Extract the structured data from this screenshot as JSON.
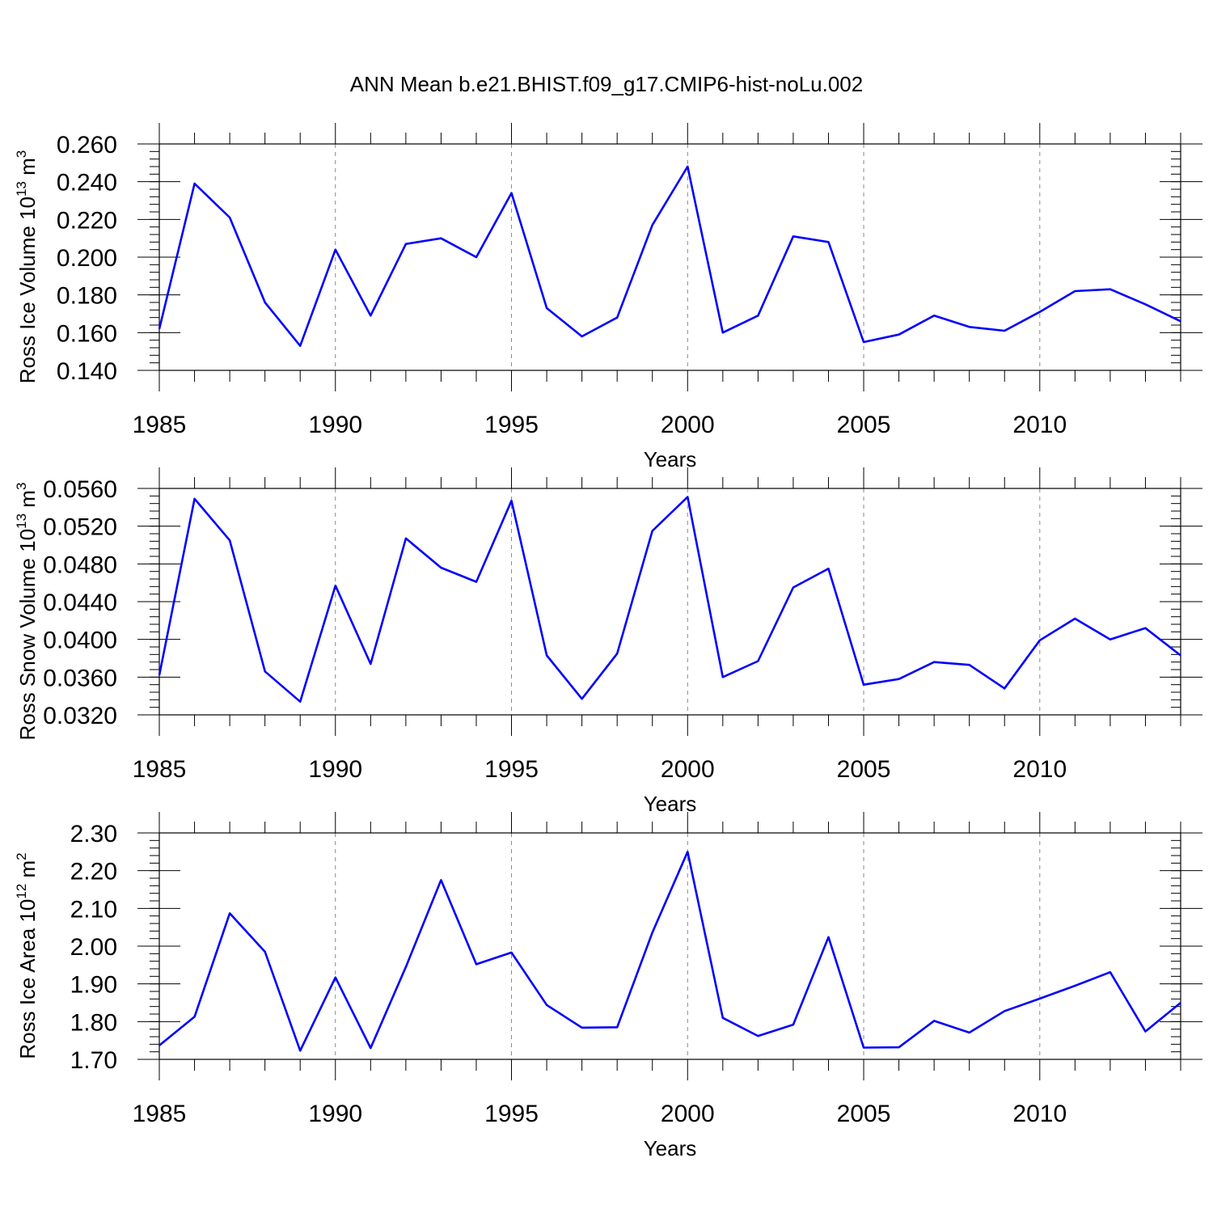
{
  "figure": {
    "title": "ANN Mean b.e21.BHIST.f09_g17.CMIP6-hist-noLu.002"
  },
  "colors": {
    "line": "#0000ff",
    "axis": "#000000",
    "grid": "#888888"
  },
  "chart_data": [
    {
      "type": "line",
      "title": "ANN Mean b.e21.BHIST.f09_g17.CMIP6-hist-noLu.002",
      "ylabel": {
        "main": "Ross Ice Volume 10",
        "exp": "13",
        "unit": " m",
        "unit_exp": "3"
      },
      "xlabel": "Years",
      "xlim": [
        1985,
        2014
      ],
      "ylim": [
        0.14,
        0.26
      ],
      "yticks": [
        0.14,
        0.16,
        0.18,
        0.2,
        0.22,
        0.24,
        0.26
      ],
      "ytick_labels": [
        "0.140",
        "0.160",
        "0.180",
        "0.200",
        "0.220",
        "0.240",
        "0.260"
      ],
      "yminor_step": 0.004,
      "xticks": [
        1985,
        1990,
        1995,
        2000,
        2005,
        2010
      ],
      "xtick_labels": [
        "1985",
        "1990",
        "1995",
        "2000",
        "2005",
        "2010"
      ],
      "grid_x": [
        1990,
        1995,
        2000,
        2005,
        2010
      ],
      "x": [
        1985,
        1986,
        1987,
        1988,
        1989,
        1990,
        1991,
        1992,
        1993,
        1994,
        1995,
        1996,
        1997,
        1998,
        1999,
        2000,
        2001,
        2002,
        2003,
        2004,
        2005,
        2006,
        2007,
        2008,
        2009,
        2010,
        2011,
        2012,
        2013,
        2014
      ],
      "series": [
        {
          "name": "Ross Ice Volume",
          "values": [
            0.162,
            0.239,
            0.221,
            0.176,
            0.153,
            0.204,
            0.169,
            0.207,
            0.21,
            0.2,
            0.234,
            0.173,
            0.158,
            0.168,
            0.217,
            0.248,
            0.16,
            0.169,
            0.211,
            0.208,
            0.155,
            0.159,
            0.169,
            0.163,
            0.161,
            0.171,
            0.182,
            0.183,
            0.175,
            0.166
          ]
        }
      ]
    },
    {
      "type": "line",
      "ylabel": {
        "main": "Ross Snow Volume 10",
        "exp": "13",
        "unit": " m",
        "unit_exp": "3"
      },
      "xlabel": "Years",
      "xlim": [
        1985,
        2014
      ],
      "ylim": [
        0.032,
        0.056
      ],
      "yticks": [
        0.032,
        0.036,
        0.04,
        0.044,
        0.048,
        0.052,
        0.056
      ],
      "ytick_labels": [
        "0.0320",
        "0.0360",
        "0.0400",
        "0.0440",
        "0.0480",
        "0.0520",
        "0.0560"
      ],
      "yminor_step": 0.0008,
      "xticks": [
        1985,
        1990,
        1995,
        2000,
        2005,
        2010
      ],
      "xtick_labels": [
        "1985",
        "1990",
        "1995",
        "2000",
        "2005",
        "2010"
      ],
      "grid_x": [
        1990,
        1995,
        2000,
        2005,
        2010
      ],
      "x": [
        1985,
        1986,
        1987,
        1988,
        1989,
        1990,
        1991,
        1992,
        1993,
        1994,
        1995,
        1996,
        1997,
        1998,
        1999,
        2000,
        2001,
        2002,
        2003,
        2004,
        2005,
        2006,
        2007,
        2008,
        2009,
        2010,
        2011,
        2012,
        2013,
        2014
      ],
      "series": [
        {
          "name": "Ross Snow Volume",
          "values": [
            0.0362,
            0.0549,
            0.0505,
            0.0366,
            0.0334,
            0.0457,
            0.0374,
            0.0507,
            0.0476,
            0.0461,
            0.0547,
            0.0383,
            0.0337,
            0.0385,
            0.0515,
            0.0551,
            0.036,
            0.0377,
            0.0455,
            0.0475,
            0.0352,
            0.0358,
            0.0376,
            0.0373,
            0.0348,
            0.0399,
            0.0422,
            0.04,
            0.0412,
            0.0383
          ]
        }
      ]
    },
    {
      "type": "line",
      "ylabel": {
        "main": "Ross Ice Area 10",
        "exp": "12",
        "unit": " m",
        "unit_exp": "2"
      },
      "xlabel": "Years",
      "xlim": [
        1985,
        2014
      ],
      "ylim": [
        1.7,
        2.3
      ],
      "yticks": [
        1.7,
        1.8,
        1.9,
        2.0,
        2.1,
        2.2,
        2.3
      ],
      "ytick_labels": [
        "1.70",
        "1.80",
        "1.90",
        "2.00",
        "2.10",
        "2.20",
        "2.30"
      ],
      "yminor_step": 0.02,
      "xticks": [
        1985,
        1990,
        1995,
        2000,
        2005,
        2010
      ],
      "xtick_labels": [
        "1985",
        "1990",
        "1995",
        "2000",
        "2005",
        "2010"
      ],
      "grid_x": [
        1990,
        1995,
        2000,
        2005,
        2010
      ],
      "x": [
        1985,
        1986,
        1987,
        1988,
        1989,
        1990,
        1991,
        1992,
        1993,
        1994,
        1995,
        1996,
        1997,
        1998,
        1999,
        2000,
        2001,
        2002,
        2003,
        2004,
        2005,
        2006,
        2007,
        2008,
        2009,
        2010,
        2011,
        2012,
        2013,
        2014
      ],
      "series": [
        {
          "name": "Ross Ice Area",
          "values": [
            1.737,
            1.813,
            2.087,
            1.985,
            1.723,
            1.917,
            1.73,
            1.945,
            2.175,
            1.952,
            1.983,
            1.844,
            1.784,
            1.785,
            2.036,
            2.25,
            1.81,
            1.762,
            1.792,
            2.024,
            1.731,
            1.732,
            1.802,
            1.771,
            1.828,
            1.861,
            1.895,
            1.931,
            1.774,
            1.85
          ]
        }
      ]
    }
  ]
}
